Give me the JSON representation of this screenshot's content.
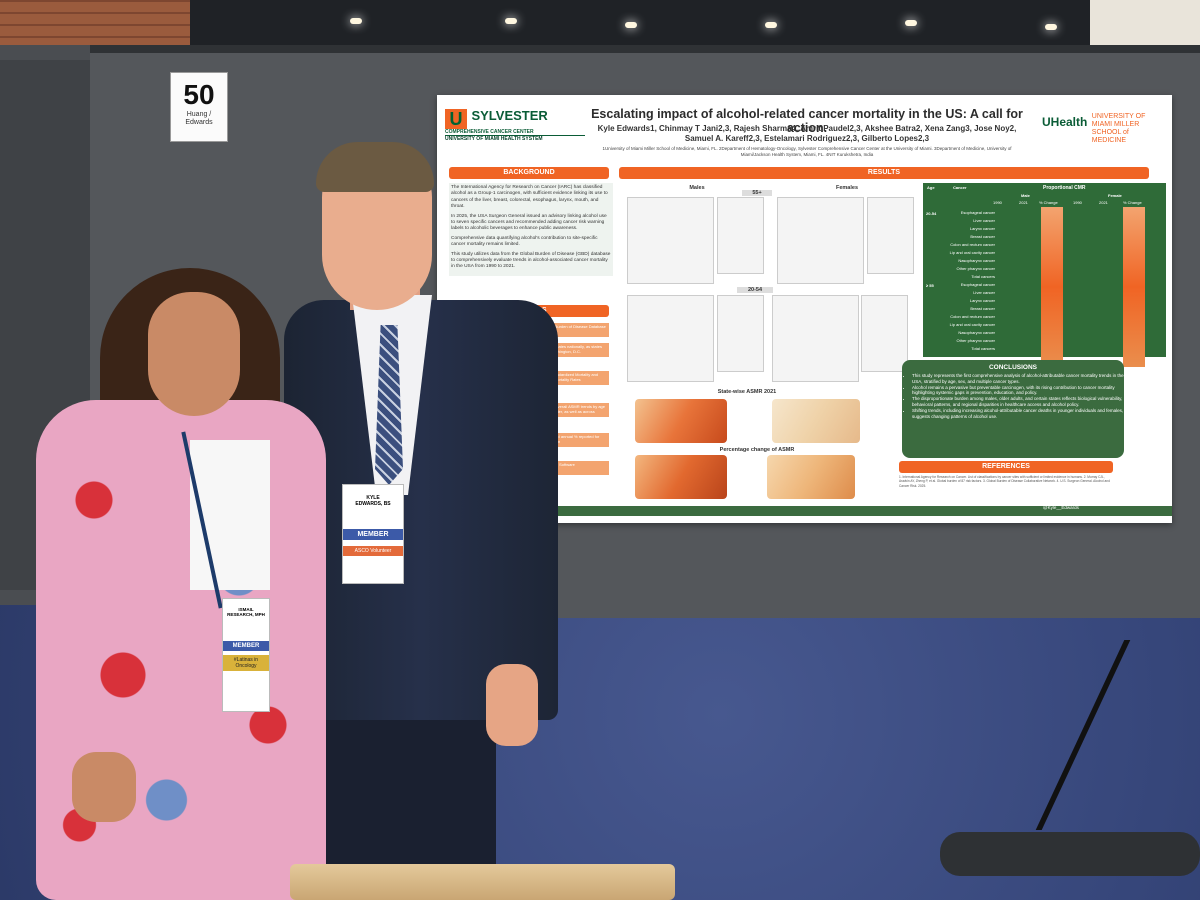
{
  "booth": {
    "number": "50",
    "names": "Huang /\nEdwards"
  },
  "poster": {
    "title": "Escalating impact of alcohol-related cancer mortality in the US: A call for action.",
    "authors": "Kyle Edwards1, Chinmay T Jani2,3, Rajesh Sharma4, Amrit Paudel2,3, Akshee Batra2, Xena Zang3, Jose Noy2, Samuel A. Kareff2,3, Estelamari Rodriguez2,3, Gilberto Lopes2,3",
    "affiliations": "1University of Miami Miller School of Medicine, Miami, FL. 2Department of Hematology-Oncology, Sylvester Comprehensive Cancer Center at the University of Miami. 3Department of Medicine, University of Miami/Jackson Health System, Miami, FL. 4NIT Kurukshetra, India",
    "logo_left": {
      "mark": "U",
      "name": "SYLVESTER",
      "sub": "COMPREHENSIVE CANCER CENTER",
      "sub2": "UNIVERSITY OF MIAMI HEALTH SYSTEM"
    },
    "logo_right": {
      "mark": "UHealth",
      "school": "UNIVERSITY OF MIAMI MILLER SCHOOL of MEDICINE"
    },
    "background": {
      "heading": "BACKGROUND",
      "bullets": [
        "The International Agency for Research on Cancer (IARC) has classified alcohol as a Group-1 carcinogen, with sufficient evidence linking its use to cancers of the liver, breast, colorectal, esophagus, larynx, mouth, and throat.",
        "In 2025, the USA Surgeon General issued an advisory linking alcohol use to seven specific cancers and recommended adding cancer risk warning labels to alcoholic beverages to enhance public awareness.",
        "Comprehensive data quantifying alcohol's contribution to site-specific cancer mortality remains limited.",
        "This study utilizes data from the Global Burden of Disease (GBD) database to comprehensively evaluate trends in alcohol-associated cancer mortality in the USA from 1990 to 2021."
      ]
    },
    "methods": {
      "heading": "METHODS",
      "items": [
        "Global Burden of Disease Database",
        "United States nationally, as states and Washington, D.C.",
        "Age-Standardized Mortality and Crude Mortality Rates",
        "Trends overall ASMR trends by age and gender, as well as across",
        "Estimated annual % reported for evaluation",
        "Joinpoint Software"
      ]
    },
    "results": {
      "heading": "RESULTS",
      "males": "Males",
      "females": "Females",
      "age_55": "55+",
      "age_20": "20-54",
      "map_title_1": "State-wise ASMR 2021",
      "map_title_2": "Percentage change of ASMR"
    },
    "table": {
      "col_age": "Age",
      "col_cancer": "Cancer",
      "col_cmr": "Proportional CMR",
      "col_male": "Male",
      "col_female": "Female",
      "years": [
        "1990",
        "2021",
        "% Change",
        "1990",
        "2021",
        "% Change"
      ],
      "group_1": "20-54",
      "group_2": "≥ 55",
      "rows_1": [
        "Esophageal cancer",
        "Liver cancer",
        "Larynx cancer",
        "Breast cancer",
        "Colon and rectum cancer",
        "Lip and oral cavity cancer",
        "Nasopharynx cancer",
        "Other pharynx cancer",
        "Total cancers"
      ],
      "rows_2": [
        "Esophageal cancer",
        "Liver cancer",
        "Larynx cancer",
        "Breast cancer",
        "Colon and rectum cancer",
        "Lip and oral cavity cancer",
        "Nasopharynx cancer",
        "Other pharynx cancer",
        "Total cancers"
      ]
    },
    "conclusions": {
      "heading": "CONCLUSIONS",
      "bullets": [
        "This study represents the first comprehensive analysis of alcohol-attributable cancer mortality trends in the USA, stratified by age, sex, and multiple cancer types.",
        "Alcohol remains a pervasive but preventable carcinogen, with its rising contribution to cancer mortality highlighting systemic gaps in prevention, education, and policy.",
        "The disproportionate burden among males, older adults, and certain states reflects biological vulnerability, behavioral patterns, and regional disparities in healthcare access and alcohol policy.",
        "Shifting trends, including increasing alcohol-attributable cancer deaths in younger individuals and females, suggests changing patterns of alcohol use."
      ]
    },
    "references": {
      "heading": "REFERENCES",
      "text": "1. International Agency for Research on Cancer. List of classifications by cancer sites with sufficient or limited evidence in humans. 2. Murray CJL, Aravkin AY, Zheng P, et al. Global burden of 87 risk factors. 3. Global Burden of Disease Collaborative Network. 4. U.S. Surgeon General. Alcohol and Cancer Risk. 2025."
    },
    "twitter": "@Kyle__Edwards"
  },
  "badges": {
    "man": {
      "name": "KYLE\nEDWARDS, BS",
      "member": "MEMBER",
      "ribbon": "ASCO Volunteer"
    },
    "woman": {
      "name": "ISMAIL\nRESEARCH, MPH",
      "member": "MEMBER",
      "ribbon": "#Latinas in Oncology"
    }
  }
}
